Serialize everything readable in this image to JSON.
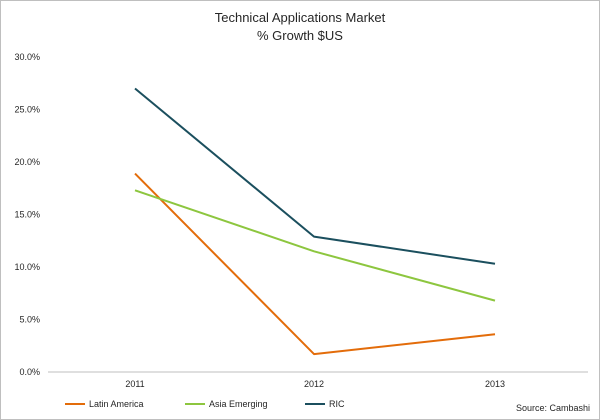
{
  "chart_data": {
    "type": "line",
    "title": "Technical Applications Market",
    "subtitle": "% Growth $US",
    "categories": [
      "2011",
      "2012",
      "2013"
    ],
    "ylim": [
      0,
      30
    ],
    "yticks": [
      "0.0%",
      "5.0%",
      "10.0%",
      "15.0%",
      "20.0%",
      "25.0%",
      "30.0%"
    ],
    "grid": false,
    "legend_position": "bottom",
    "series": [
      {
        "name": "Latin America",
        "values": [
          18.9,
          1.7,
          3.6
        ],
        "color": "#e36c0a"
      },
      {
        "name": "Asia Emerging",
        "values": [
          17.3,
          11.5,
          6.8
        ],
        "color": "#8dc63f"
      },
      {
        "name": "RIC",
        "values": [
          27.0,
          12.9,
          10.3
        ],
        "color": "#1b4f5e"
      }
    ],
    "source": "Source: Cambashi"
  }
}
